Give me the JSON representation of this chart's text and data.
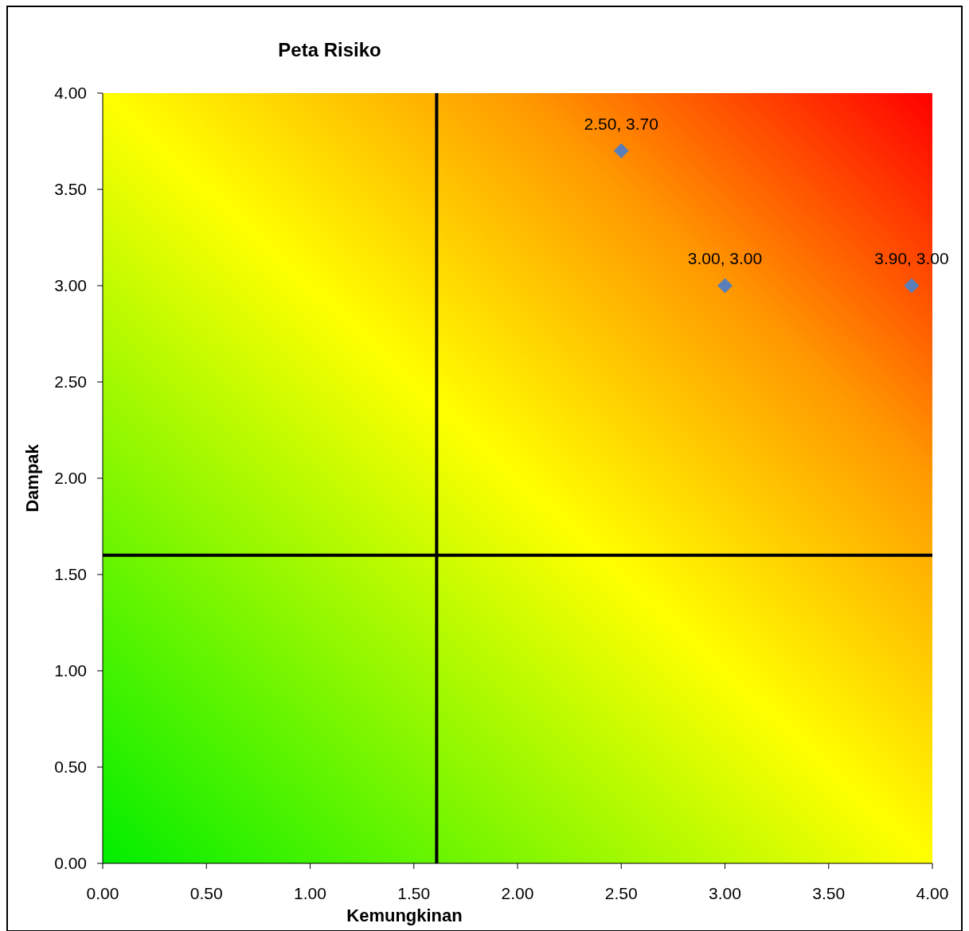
{
  "chart_data": {
    "type": "scatter",
    "title": "Peta Risiko",
    "xlabel": "Kemungkinan",
    "ylabel": "Dampak",
    "x": [
      2.5,
      3.0,
      3.9
    ],
    "series": [
      {
        "color": "#5a7fb8",
        "values": [
          3.7,
          3.0,
          3.0
        ],
        "value_labels": [
          "2.50, 3.70",
          "3.00, 3.00",
          "3.90, 3.00"
        ]
      }
    ],
    "xlim": [
      0,
      4
    ],
    "xticks": [
      {
        "value": 0,
        "label": "0.00"
      },
      {
        "value": 0.5,
        "label": "0.50"
      },
      {
        "value": 1,
        "label": "1.00"
      },
      {
        "value": 1.5,
        "label": "1.50"
      },
      {
        "value": 2,
        "label": "2.00"
      },
      {
        "value": 2.5,
        "label": "2.50"
      },
      {
        "value": 3,
        "label": "3.00"
      },
      {
        "value": 3.5,
        "label": "3.50"
      },
      {
        "value": 4,
        "label": "4.00"
      }
    ],
    "ylim": [
      0,
      4
    ],
    "yticks": [
      {
        "value": 0,
        "label": "0.00"
      },
      {
        "value": 0.5,
        "label": "0.50"
      },
      {
        "value": 1,
        "label": "1.00"
      },
      {
        "value": 1.5,
        "label": "1.50"
      },
      {
        "value": 2,
        "label": "2.00"
      },
      {
        "value": 2.5,
        "label": "2.50"
      },
      {
        "value": 3,
        "label": "3.00"
      },
      {
        "value": 3.5,
        "label": "3.50"
      },
      {
        "value": 4,
        "label": "4.00"
      }
    ],
    "ref_lines": [
      {
        "axis": "x",
        "value": 1.61,
        "color": "#000000"
      },
      {
        "axis": "y",
        "value": 1.6,
        "color": "#000000"
      }
    ],
    "grid": false,
    "marker": "diamond"
  }
}
